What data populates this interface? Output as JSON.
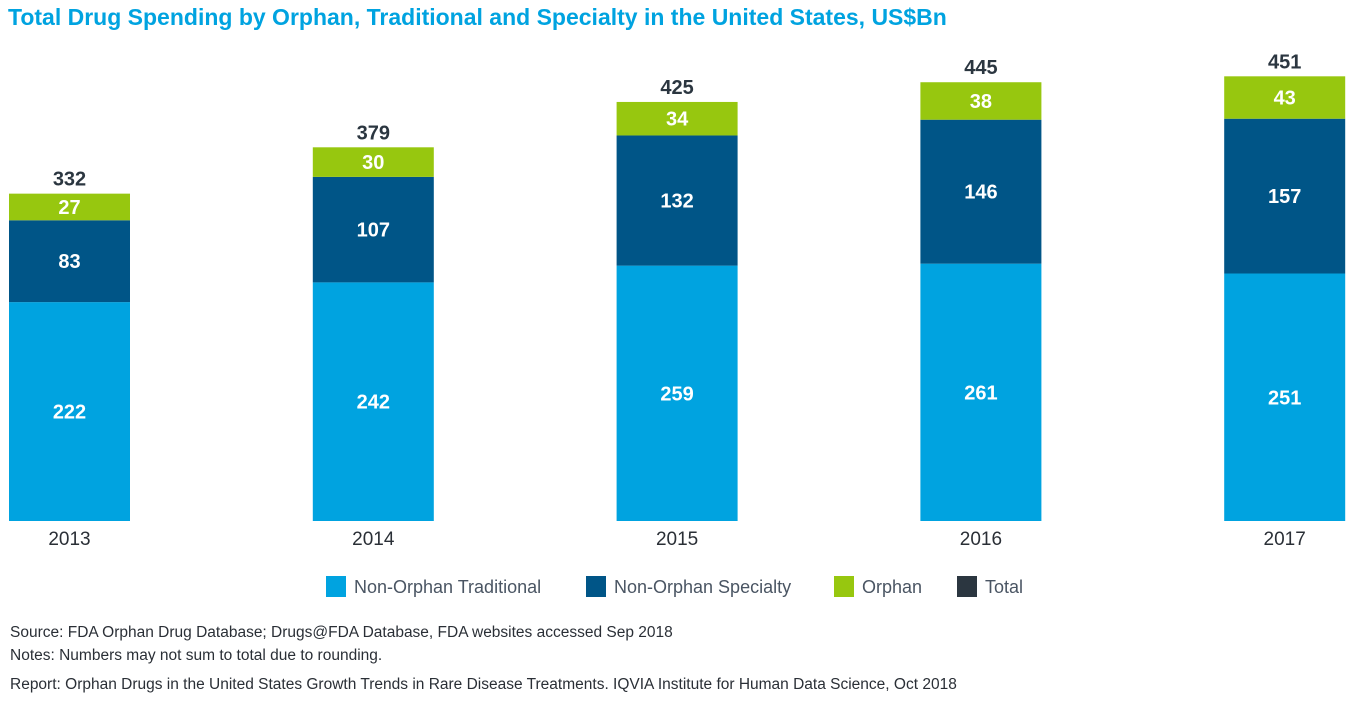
{
  "chart_data": {
    "type": "bar",
    "stacked": true,
    "title": "Total Drug Spending by Orphan, Traditional and Specialty in the United States, US$Bn",
    "categories": [
      "2013",
      "2014",
      "2015",
      "2016",
      "2017"
    ],
    "series": [
      {
        "name": "Non-Orphan Traditional",
        "color": "#00a3e0",
        "values": [
          222,
          242,
          259,
          261,
          251
        ]
      },
      {
        "name": "Non-Orphan Specialty",
        "color": "#005587",
        "values": [
          83,
          107,
          132,
          146,
          157
        ]
      },
      {
        "name": "Orphan",
        "color": "#97c70f",
        "values": [
          27,
          30,
          34,
          38,
          43
        ]
      }
    ],
    "totals": {
      "name": "Total",
      "color": "#2b3640",
      "values": [
        332,
        379,
        425,
        445,
        451
      ]
    },
    "xlabel": "",
    "ylabel": "",
    "ylim": [
      0,
      460
    ],
    "grid": false,
    "legend": "bottom"
  },
  "notes": {
    "source": "Source: FDA Orphan Drug Database;  Drugs@FDA Database, FDA websites accessed Sep 2018",
    "notes": "Notes: Numbers may not sum to total due to rounding.",
    "report": "Report: Orphan Drugs in the United States Growth Trends in Rare Disease Treatments. IQVIA Institute for Human Data Science, Oct 2018"
  }
}
